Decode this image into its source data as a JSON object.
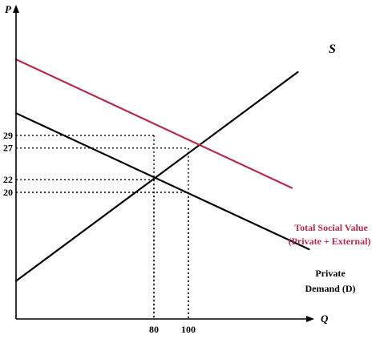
{
  "chart_data": {
    "type": "line",
    "title": "",
    "xlabel": "Q",
    "ylabel": "P",
    "grid": false,
    "x_ticks": [
      80,
      100
    ],
    "y_ticks": [
      20,
      22,
      27,
      29
    ],
    "lines": [
      {
        "id": "supply",
        "label": "S",
        "color": "#000000",
        "points": [
          [
            0,
            6
          ],
          [
            163.5,
            39
          ]
        ]
      },
      {
        "id": "private-demand",
        "label_line1": "Private",
        "label_line2": "Demand (D)",
        "color": "#000000",
        "points": [
          [
            0,
            32.5
          ],
          [
            170,
            11
          ]
        ]
      },
      {
        "id": "total-social-value",
        "label_line1": "Total Social Value",
        "label_line2": "(Private + External)",
        "color": "#b52a4a",
        "points": [
          [
            0,
            41
          ],
          [
            160,
            20.7
          ]
        ]
      }
    ],
    "reference_points": [
      {
        "x": 80,
        "y": 29
      },
      {
        "x": 80,
        "y": 22
      },
      {
        "x": 100,
        "y": 27
      },
      {
        "x": 100,
        "y": 20
      }
    ]
  }
}
